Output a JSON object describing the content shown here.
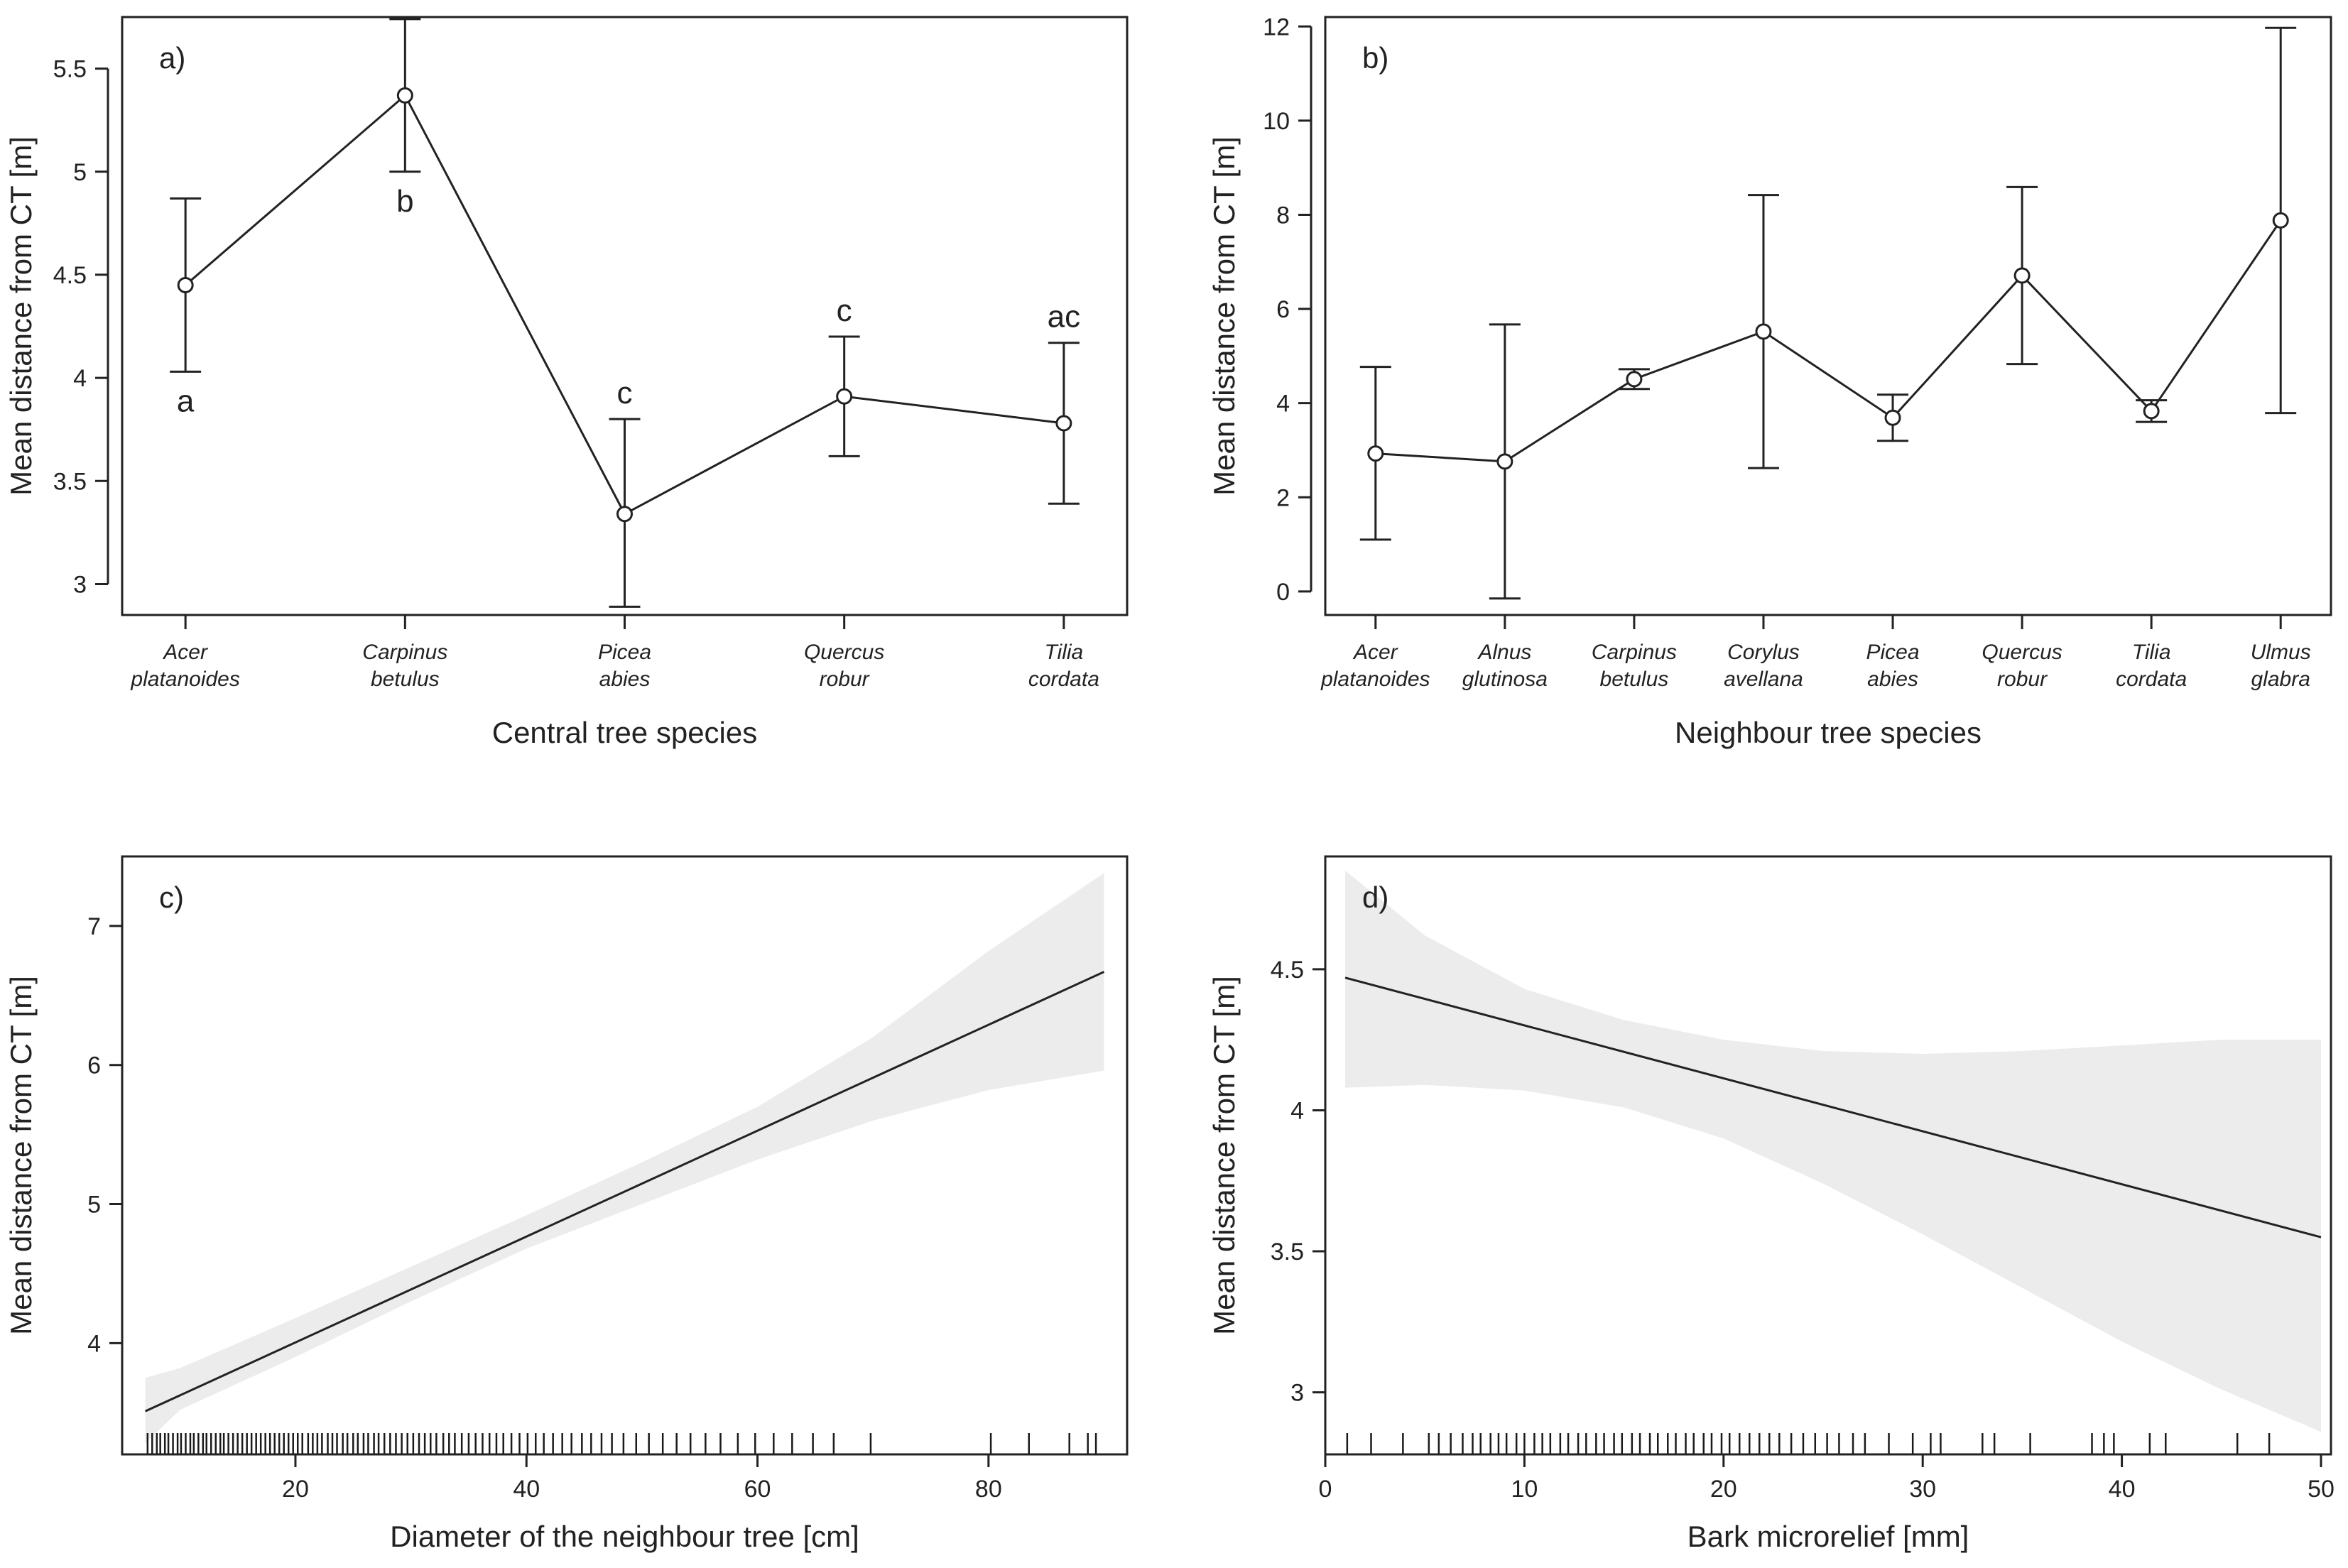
{
  "colors": {
    "ink": "#222222",
    "ribbon": "#ececec",
    "rug": "#1a1a1a"
  },
  "chart_data": [
    {
      "panel": "a)",
      "type": "line",
      "xlabel": "Central tree species",
      "ylabel": "Mean distance from CT [m]",
      "ylim": [
        2.85,
        5.75
      ],
      "yticks": [
        3.0,
        3.5,
        4.0,
        4.5,
        5.0,
        5.5
      ],
      "categories": [
        [
          "Acer",
          "platanoides"
        ],
        [
          "Carpinus",
          "betulus"
        ],
        [
          "Picea",
          "abies"
        ],
        [
          "Quercus",
          "robur"
        ],
        [
          "Tilia",
          "cordata"
        ]
      ],
      "values": [
        4.45,
        5.37,
        3.34,
        3.91,
        3.78
      ],
      "lower": [
        4.03,
        5.0,
        2.89,
        3.62,
        3.39
      ],
      "upper": [
        4.87,
        5.74,
        3.8,
        4.2,
        4.17
      ],
      "letters": [
        "a",
        "b",
        "c",
        "c",
        "ac"
      ],
      "letter_side": [
        "below",
        "below",
        "above",
        "above",
        "above"
      ]
    },
    {
      "panel": "b)",
      "type": "line",
      "xlabel": "Neighbour tree species",
      "ylabel": "Mean distance from CT [m]",
      "ylim": [
        -0.5,
        12.2
      ],
      "yticks": [
        0,
        2,
        4,
        6,
        8,
        10,
        12
      ],
      "categories": [
        [
          "Acer",
          "platanoides"
        ],
        [
          "Alnus",
          "glutinosa"
        ],
        [
          "Carpinus",
          "betulus"
        ],
        [
          "Corylus",
          "avellana"
        ],
        [
          "Picea",
          "abies"
        ],
        [
          "Quercus",
          "robur"
        ],
        [
          "Tilia",
          "cordata"
        ],
        [
          "Ulmus",
          "glabra"
        ]
      ],
      "values": [
        2.93,
        2.76,
        4.51,
        5.52,
        3.69,
        6.71,
        3.83,
        7.88
      ],
      "lower": [
        1.1,
        -0.15,
        4.3,
        2.62,
        3.2,
        4.83,
        3.6,
        3.79
      ],
      "upper": [
        4.77,
        5.67,
        4.72,
        8.42,
        4.18,
        8.59,
        4.06,
        11.97
      ]
    },
    {
      "panel": "c)",
      "type": "line",
      "xlabel": "Diameter of the neighbour tree [cm]",
      "ylabel": "Mean distance from CT [m]",
      "xlim": [
        5,
        92
      ],
      "ylim": [
        3.2,
        7.5
      ],
      "xticks": [
        20,
        40,
        60,
        80
      ],
      "yticks": [
        4,
        5,
        6,
        7
      ],
      "line": {
        "x": [
          7,
          90
        ],
        "y": [
          3.51,
          6.67
        ]
      },
      "ribbon": {
        "x": [
          7,
          10,
          20,
          30,
          40,
          50,
          60,
          70,
          80,
          90
        ],
        "lower": [
          3.28,
          3.52,
          3.9,
          4.3,
          4.68,
          5.0,
          5.32,
          5.6,
          5.82,
          5.96
        ],
        "upper": [
          3.75,
          3.82,
          4.18,
          4.55,
          4.92,
          5.3,
          5.7,
          6.2,
          6.82,
          7.38
        ]
      },
      "rug": [
        7.2,
        7.6,
        8,
        8.3,
        8.7,
        9,
        9.4,
        9.8,
        10.1,
        10.5,
        10.9,
        11.2,
        11.6,
        12,
        12.3,
        12.7,
        13.1,
        13.5,
        13.8,
        14.2,
        14.6,
        15,
        15.4,
        15.8,
        16.2,
        16.6,
        17,
        17.4,
        17.8,
        18.2,
        18.6,
        19,
        19.4,
        19.8,
        20.2,
        20.6,
        21.1,
        21.5,
        21.9,
        22.3,
        22.8,
        23.2,
        23.6,
        24.1,
        24.5,
        25,
        25.4,
        25.9,
        26.3,
        26.8,
        27.2,
        27.7,
        28.2,
        28.7,
        29.2,
        29.7,
        30.2,
        30.7,
        31.2,
        31.7,
        32.2,
        32.8,
        33.3,
        33.8,
        34.4,
        35,
        35.6,
        36.2,
        36.8,
        37.4,
        38,
        38.7,
        39.4,
        40.1,
        40.8,
        41.5,
        42.3,
        43.1,
        43.9,
        44.8,
        45.6,
        46.5,
        47.4,
        48.4,
        49.5,
        50.6,
        51.8,
        53,
        54.2,
        55.5,
        56.8,
        58.3,
        59.8,
        61.4,
        63,
        64.8,
        66.6,
        69.8,
        80.2,
        83.5,
        87,
        88.6,
        89.3
      ]
    },
    {
      "panel": "d)",
      "type": "line",
      "xlabel": "Bark microrelief [mm]",
      "ylabel": "Mean distance from CT [m]",
      "xlim": [
        0,
        50.5
      ],
      "ylim": [
        2.78,
        4.9
      ],
      "xticks": [
        0,
        10,
        20,
        30,
        40,
        50
      ],
      "yticks": [
        3.0,
        3.5,
        4.0,
        4.5
      ],
      "line": {
        "x": [
          1,
          50
        ],
        "y": [
          4.47,
          3.55
        ]
      },
      "ribbon": {
        "x": [
          1,
          5,
          10,
          15,
          20,
          25,
          30,
          35,
          40,
          45,
          50
        ],
        "lower": [
          4.08,
          4.09,
          4.07,
          4.01,
          3.9,
          3.74,
          3.56,
          3.37,
          3.18,
          3.01,
          2.86
        ],
        "upper": [
          4.85,
          4.62,
          4.43,
          4.32,
          4.25,
          4.21,
          4.2,
          4.21,
          4.23,
          4.25,
          4.25
        ]
      },
      "rug": [
        1.1,
        2.3,
        3.9,
        5.2,
        5.7,
        6.3,
        6.9,
        7.4,
        7.8,
        8.3,
        8.7,
        9.1,
        9.6,
        10,
        10.5,
        10.9,
        11.3,
        11.8,
        12.2,
        12.7,
        13.1,
        13.6,
        14,
        14.5,
        14.9,
        15.4,
        15.8,
        16.3,
        16.7,
        17.2,
        17.6,
        18.1,
        18.5,
        19,
        19.4,
        19.9,
        20.3,
        20.8,
        21.3,
        21.8,
        22.3,
        22.8,
        23.4,
        24,
        24.6,
        25.2,
        25.8,
        26.5,
        27.1,
        28.3,
        29.5,
        30.4,
        30.9,
        33,
        33.6,
        35.4,
        38.5,
        39.1,
        39.6,
        41.4,
        42.2,
        45.8,
        47.4
      ]
    }
  ]
}
